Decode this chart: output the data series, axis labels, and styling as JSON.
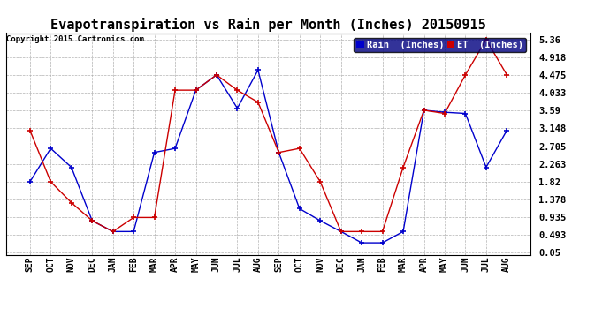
{
  "title": "Evapotranspiration vs Rain per Month (Inches) 20150915",
  "copyright": "Copyright 2015 Cartronics.com",
  "x_labels": [
    "SEP",
    "OCT",
    "NOV",
    "DEC",
    "JAN",
    "FEB",
    "MAR",
    "APR",
    "MAY",
    "JUN",
    "JUL",
    "AUG",
    "SEP",
    "OCT",
    "NOV",
    "DEC",
    "JAN",
    "FEB",
    "MAR",
    "APR",
    "MAY",
    "JUN",
    "JUL",
    "AUG"
  ],
  "rain_values": [
    1.82,
    2.65,
    2.18,
    0.85,
    0.58,
    0.58,
    2.55,
    2.65,
    4.1,
    4.48,
    3.65,
    4.6,
    2.55,
    1.15,
    0.85,
    0.58,
    0.3,
    0.3,
    0.58,
    3.6,
    3.55,
    3.52,
    2.18,
    3.1
  ],
  "et_values": [
    3.1,
    1.82,
    1.3,
    0.85,
    0.58,
    0.93,
    0.93,
    4.1,
    4.1,
    4.48,
    4.1,
    3.8,
    2.55,
    2.65,
    1.82,
    0.58,
    0.58,
    0.58,
    2.18,
    3.6,
    3.52,
    4.48,
    5.36,
    4.48
  ],
  "y_ticks": [
    0.05,
    0.493,
    0.935,
    1.378,
    1.82,
    2.263,
    2.705,
    3.148,
    3.59,
    4.033,
    4.475,
    4.918,
    5.36
  ],
  "ylim": [
    0.0,
    5.52
  ],
  "rain_color": "#0000cc",
  "et_color": "#cc0000",
  "background_color": "#ffffff",
  "grid_color": "#aaaaaa",
  "title_fontsize": 11,
  "legend_rain_label": "Rain  (Inches)",
  "legend_et_label": "ET  (Inches)",
  "legend_bg": "#000080"
}
